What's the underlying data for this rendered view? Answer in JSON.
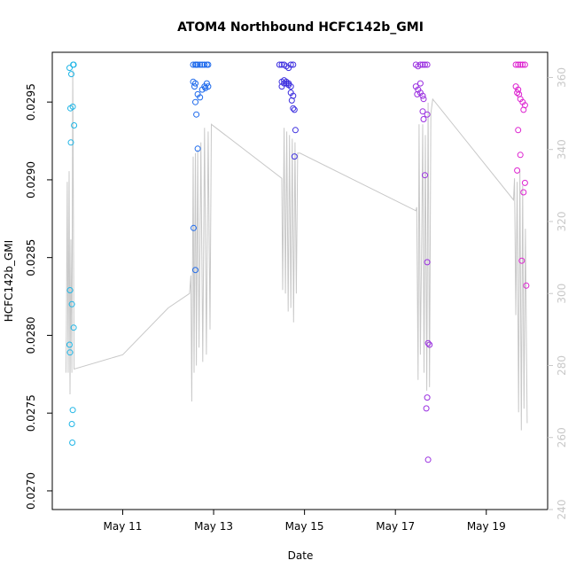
{
  "chart_data": {
    "type": "scatter",
    "title": "ATOM4 Northbound HCFC142b_GMI",
    "xlabel": "Date",
    "ylabel": "HCFC142b_GMI",
    "x_ticks": [
      {
        "value": 11,
        "label": "May 11"
      },
      {
        "value": 13,
        "label": "May 13"
      },
      {
        "value": 15,
        "label": "May 15"
      },
      {
        "value": 17,
        "label": "May 17"
      },
      {
        "value": 19,
        "label": "May 19"
      }
    ],
    "y_ticks": [
      "0.0270",
      "0.0275",
      "0.0280",
      "0.0285",
      "0.0290",
      "0.0295"
    ],
    "y_right_ticks": [
      "240",
      "260",
      "280",
      "300",
      "320",
      "340",
      "360"
    ],
    "xlim": [
      9.45,
      20.35
    ],
    "ylim": [
      0.02688,
      0.02982
    ],
    "y_right_lim": [
      240,
      367
    ],
    "grid": false,
    "colors": {
      "line": "#c8c8c8",
      "right_axis": "#c8c8c8",
      "frame": "#000000"
    },
    "series": [
      {
        "color": "#1fb5e6",
        "x": [
          9.83,
          9.87,
          9.85,
          9.9,
          9.86,
          9.93,
          9.84,
          9.88,
          9.92,
          9.83,
          9.84,
          9.9,
          9.88,
          9.89,
          9.92,
          9.91
        ],
        "y": [
          0.02972,
          0.02968,
          0.02946,
          0.02947,
          0.02924,
          0.02935,
          0.02829,
          0.0282,
          0.02805,
          0.02794,
          0.02789,
          0.02752,
          0.02743,
          0.02731,
          0.02974,
          0.02974
        ]
      },
      {
        "color": "#1e6aec",
        "x": [
          12.55,
          12.6,
          12.62,
          12.65,
          12.7,
          12.75,
          12.8,
          12.85,
          12.88,
          12.55,
          12.6,
          12.58,
          12.65,
          12.7,
          12.75,
          12.8,
          12.85,
          12.82,
          12.88,
          12.6,
          12.62,
          12.65,
          12.56,
          12.6
        ],
        "y": [
          0.02974,
          0.02974,
          0.02974,
          0.02974,
          0.02974,
          0.02974,
          0.02974,
          0.02974,
          0.02974,
          0.02963,
          0.02962,
          0.0296,
          0.02955,
          0.02953,
          0.02958,
          0.0296,
          0.02962,
          0.02959,
          0.0296,
          0.0295,
          0.02942,
          0.0292,
          0.02869,
          0.02842
        ]
      },
      {
        "color": "#3d2fdf",
        "x": [
          14.45,
          14.5,
          14.55,
          14.6,
          14.65,
          14.7,
          14.75,
          14.5,
          14.55,
          14.6,
          14.65,
          14.7,
          14.5,
          14.55,
          14.6,
          14.65,
          14.7,
          14.75,
          14.72,
          14.75,
          14.78,
          14.8,
          14.78
        ],
        "y": [
          0.02974,
          0.02974,
          0.02974,
          0.02973,
          0.02972,
          0.02974,
          0.02974,
          0.02963,
          0.02964,
          0.02962,
          0.02961,
          0.0296,
          0.0296,
          0.02962,
          0.02963,
          0.02962,
          0.02956,
          0.02954,
          0.02951,
          0.02946,
          0.02945,
          0.02932,
          0.02915
        ]
      },
      {
        "color": "#9a2fe0",
        "x": [
          17.45,
          17.5,
          17.55,
          17.6,
          17.65,
          17.7,
          17.45,
          17.5,
          17.55,
          17.48,
          17.6,
          17.62,
          17.55,
          17.7,
          17.6,
          17.62,
          17.65,
          17.7,
          17.72,
          17.75,
          17.68,
          17.7,
          17.72
        ],
        "y": [
          0.02974,
          0.02973,
          0.02974,
          0.02974,
          0.02974,
          0.02974,
          0.0296,
          0.02958,
          0.02956,
          0.02955,
          0.02954,
          0.02952,
          0.02962,
          0.02942,
          0.02944,
          0.02939,
          0.02903,
          0.02847,
          0.02795,
          0.02794,
          0.02753,
          0.0276,
          0.0272
        ]
      },
      {
        "color": "#dd22d0",
        "x": [
          19.65,
          19.7,
          19.75,
          19.8,
          19.85,
          19.65,
          19.7,
          19.68,
          19.72,
          19.75,
          19.8,
          19.85,
          19.82,
          19.7,
          19.75,
          19.68,
          19.85,
          19.82,
          19.78,
          19.88
        ],
        "y": [
          0.02974,
          0.02974,
          0.02974,
          0.02974,
          0.02974,
          0.0296,
          0.02958,
          0.02956,
          0.02955,
          0.02952,
          0.0295,
          0.02948,
          0.02945,
          0.02932,
          0.02916,
          0.02906,
          0.02898,
          0.02892,
          0.02848,
          0.02832
        ]
      }
    ],
    "line_series": {
      "x": [
        9.75,
        9.76,
        9.78,
        9.8,
        9.82,
        9.84,
        9.86,
        9.88,
        9.9,
        9.93,
        11.0,
        12.0,
        12.47,
        12.5,
        12.52,
        12.55,
        12.57,
        12.6,
        12.62,
        12.65,
        12.68,
        12.72,
        12.76,
        12.8,
        12.84,
        12.88,
        12.92,
        12.95,
        14.5,
        14.52,
        14.55,
        14.58,
        14.61,
        14.64,
        14.67,
        14.7,
        14.73,
        14.76,
        14.79,
        14.82,
        14.85,
        14.9,
        17.45,
        17.47,
        17.5,
        17.52,
        17.55,
        17.58,
        17.6,
        17.63,
        17.66,
        17.69,
        17.72,
        17.75,
        17.78,
        17.82,
        19.6,
        19.62,
        19.65,
        19.68,
        19.71,
        19.74,
        19.77,
        19.8,
        19.83,
        19.86,
        19.9
      ],
      "y": [
        278,
        290,
        331,
        278,
        334,
        272,
        315,
        278,
        362,
        279,
        283,
        296,
        300,
        305,
        270,
        338,
        278,
        339,
        280,
        340,
        285,
        342,
        281,
        346,
        283,
        345,
        290,
        347,
        332,
        301,
        346,
        300,
        345,
        295,
        344,
        296,
        343,
        292,
        342,
        300,
        339,
        339,
        323,
        324,
        276,
        347,
        283,
        315,
        347,
        278,
        344,
        273,
        353,
        274,
        350,
        354,
        326,
        332,
        294,
        331,
        267,
        334,
        262,
        330,
        268,
        318,
        264
      ]
    }
  }
}
